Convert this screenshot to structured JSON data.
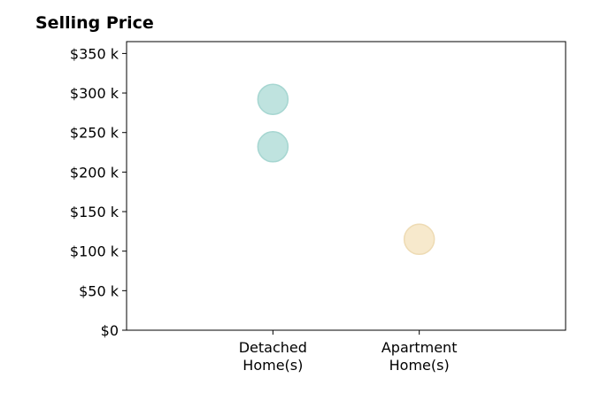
{
  "chart_data": {
    "type": "scatter",
    "title": "Selling Price",
    "xlabel": "",
    "ylabel": "",
    "categories": [
      [
        "Detached",
        "Home(s)"
      ],
      [
        "Apartment",
        "Home(s)"
      ]
    ],
    "xlim": [
      -1,
      2
    ],
    "ylim": [
      0,
      365000
    ],
    "y_ticks": [
      0,
      50000,
      100000,
      150000,
      200000,
      250000,
      300000,
      350000
    ],
    "y_tick_labels": [
      "$0",
      "$50 k",
      "$100 k",
      "$150 k",
      "$200 k",
      "$250 k",
      "$300 k",
      "$350 k"
    ],
    "grid": false,
    "legend": "none",
    "points": [
      {
        "category": 0,
        "y": 292000,
        "color": "#bfe3df"
      },
      {
        "category": 0,
        "y": 232000,
        "color": "#bfe3df"
      },
      {
        "category": 1,
        "y": 115000,
        "color": "#f7e9cc"
      }
    ],
    "marker_edge_colors": {
      "#bfe3df": "#a6d6d1",
      "#f7e9cc": "#eedbb4"
    }
  }
}
